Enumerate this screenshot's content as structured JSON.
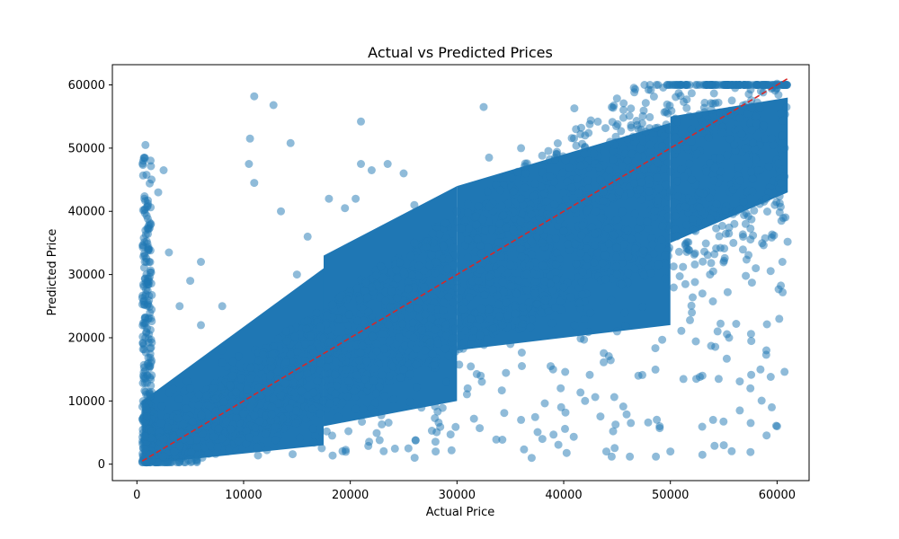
{
  "chart_data": {
    "type": "scatter",
    "title": "Actual vs Predicted Prices",
    "xlabel": "Actual Price",
    "ylabel": "Predicted Price",
    "xlim": [
      -2300,
      63000
    ],
    "ylim": [
      -2600,
      63200
    ],
    "xticks": [
      0,
      10000,
      20000,
      30000,
      40000,
      50000,
      60000
    ],
    "yticks": [
      0,
      10000,
      20000,
      30000,
      40000,
      50000,
      60000
    ],
    "grid": false,
    "legend": "none",
    "colors": {
      "points": "#1f77b4",
      "reference_line": "#d62728"
    },
    "reference_line": {
      "style": "dashed",
      "x": [
        500,
        61000
      ],
      "y": [
        500,
        61000
      ]
    },
    "series": [
      {
        "points": [
          [
            1200,
            1500
          ],
          [
            2500,
            4000
          ],
          [
            3500,
            2000
          ],
          [
            800,
            9000
          ],
          [
            600,
            14000
          ],
          [
            700,
            22000
          ],
          [
            900,
            30000
          ],
          [
            800,
            37000
          ],
          [
            700,
            42000
          ],
          [
            600,
            48000
          ],
          [
            800,
            50500
          ],
          [
            2500,
            46500
          ],
          [
            2000,
            43000
          ],
          [
            3000,
            33500
          ],
          [
            5000,
            29000
          ],
          [
            6000,
            32000
          ],
          [
            4000,
            25000
          ],
          [
            6000,
            22000
          ],
          [
            8000,
            25000
          ],
          [
            8000,
            18000
          ],
          [
            5000,
            12000
          ],
          [
            9000,
            14000
          ],
          [
            10500,
            47500
          ],
          [
            11000,
            58200
          ],
          [
            12800,
            56800
          ],
          [
            10600,
            51500
          ],
          [
            14400,
            50800
          ],
          [
            11000,
            44500
          ],
          [
            13500,
            40000
          ],
          [
            16000,
            36000
          ],
          [
            12500,
            14000
          ],
          [
            15000,
            30000
          ],
          [
            14000,
            21000
          ],
          [
            18000,
            42000
          ],
          [
            19500,
            40500
          ],
          [
            20500,
            42000
          ],
          [
            21000,
            54200
          ],
          [
            21000,
            47500
          ],
          [
            22000,
            46500
          ],
          [
            23500,
            47500
          ],
          [
            25000,
            46000
          ],
          [
            26000,
            41000
          ],
          [
            20000,
            20000
          ],
          [
            22000,
            28000
          ],
          [
            24000,
            24000
          ],
          [
            26000,
            35000
          ],
          [
            28000,
            32000
          ],
          [
            25000,
            15000
          ],
          [
            28000,
            2000
          ],
          [
            27000,
            18000
          ],
          [
            30000,
            40000
          ],
          [
            32000,
            29000
          ],
          [
            29000,
            13000
          ],
          [
            31000,
            12000
          ],
          [
            32500,
            56500
          ],
          [
            33000,
            48500
          ],
          [
            36000,
            50000
          ],
          [
            36000,
            42000
          ],
          [
            34000,
            38000
          ],
          [
            38000,
            35000
          ],
          [
            35000,
            19000
          ],
          [
            36000,
            7000
          ],
          [
            37000,
            1000
          ],
          [
            38000,
            4000
          ],
          [
            39000,
            15000
          ],
          [
            40000,
            28000
          ],
          [
            40000,
            43000
          ],
          [
            41000,
            56300
          ],
          [
            42000,
            52000
          ],
          [
            43000,
            40000
          ],
          [
            41000,
            22000
          ],
          [
            42000,
            10000
          ],
          [
            44000,
            2000
          ],
          [
            44500,
            1200
          ],
          [
            45000,
            30000
          ],
          [
            46000,
            37000
          ],
          [
            45000,
            21000
          ],
          [
            46200,
            1200
          ],
          [
            47000,
            53000
          ],
          [
            48000,
            45000
          ],
          [
            47000,
            14000
          ],
          [
            49000,
            6000
          ],
          [
            49500,
            33000
          ],
          [
            50000,
            2000
          ],
          [
            51000,
            51000
          ],
          [
            52000,
            45000
          ],
          [
            53000,
            27000
          ],
          [
            53000,
            14000
          ],
          [
            54000,
            7000
          ],
          [
            54500,
            57200
          ],
          [
            55000,
            3000
          ],
          [
            55500,
            20000
          ],
          [
            56000,
            38000
          ],
          [
            57000,
            50000
          ],
          [
            57500,
            12000
          ],
          [
            58000,
            31000
          ],
          [
            58000,
            55000
          ],
          [
            59000,
            42000
          ],
          [
            59500,
            9000
          ],
          [
            60000,
            6000
          ],
          [
            60000,
            60200
          ],
          [
            60500,
            52000
          ],
          [
            60200,
            23000
          ],
          [
            60700,
            45500
          ],
          [
            60500,
            32000
          ],
          [
            59000,
            18000
          ],
          [
            53000,
            1500
          ],
          [
            56500,
            8500
          ]
        ]
      }
    ],
    "dense_band": {
      "x_range": [
        500,
        61000
      ],
      "segments": [
        {
          "x_from": 500,
          "x_to": 17500,
          "y_lower_at_start": 0,
          "y_upper_at_start": 10000,
          "y_lower_at_end": 3000,
          "y_upper_at_end": 31000
        },
        {
          "x_from": 17500,
          "x_to": 30000,
          "y_lower_at_start": 6000,
          "y_upper_at_start": 33000,
          "y_lower_at_end": 10000,
          "y_upper_at_end": 44000
        },
        {
          "x_from": 30000,
          "x_to": 50000,
          "y_lower_at_start": 18000,
          "y_upper_at_start": 44000,
          "y_lower_at_end": 22000,
          "y_upper_at_end": 54000
        },
        {
          "x_from": 50000,
          "x_to": 61000,
          "y_lower_at_start": 35000,
          "y_upper_at_start": 55000,
          "y_lower_at_end": 43000,
          "y_upper_at_end": 58000
        }
      ]
    }
  }
}
